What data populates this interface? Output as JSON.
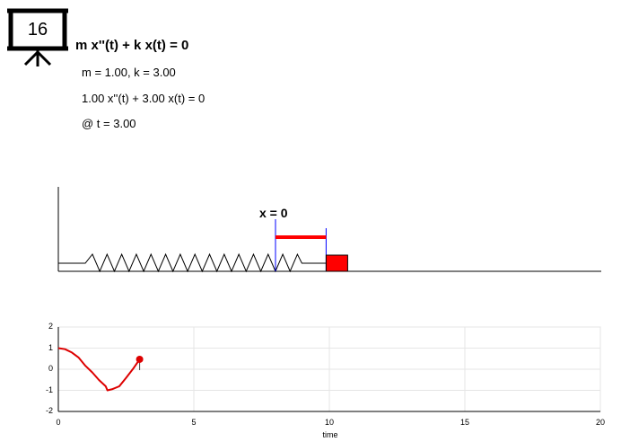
{
  "slide": {
    "number": "16",
    "icon": "presentation-board-icon"
  },
  "equation": {
    "title": "m x''(t) + k x(t) = 0",
    "params": "m = 1.00, k = 3.00",
    "substituted": "1.00 x''(t) + 3.00 x(t) = 0",
    "time": "@ t = 3.00"
  },
  "animation": {
    "x_label": "x = 0",
    "displacement": 0.47,
    "colors": {
      "mass": "#ff0000",
      "equilibrium_line": "#0000ff",
      "spring": "#000000"
    }
  },
  "chart_data": {
    "type": "line",
    "title": "",
    "xlabel": "time",
    "ylabel": "",
    "xlim": [
      0,
      20
    ],
    "ylim": [
      -2,
      2
    ],
    "xticks": [
      "0",
      "5",
      "10",
      "15",
      "20"
    ],
    "yticks": [
      "2",
      "1",
      "0",
      "-1",
      "-2"
    ],
    "grid": true,
    "series": [
      {
        "color": "#dd0000",
        "x": [
          0,
          0.25,
          0.5,
          0.75,
          1.0,
          1.25,
          1.5,
          1.75,
          1.81,
          2.0,
          2.25,
          2.5,
          2.75,
          3.0
        ],
        "y": [
          1.0,
          0.95,
          0.79,
          0.55,
          0.16,
          -0.15,
          -0.51,
          -0.81,
          -1.0,
          -0.94,
          -0.81,
          -0.41,
          0.01,
          0.47
        ]
      }
    ],
    "current_point": {
      "x": 3.0,
      "y": 0.47,
      "color": "#dd0000"
    }
  }
}
